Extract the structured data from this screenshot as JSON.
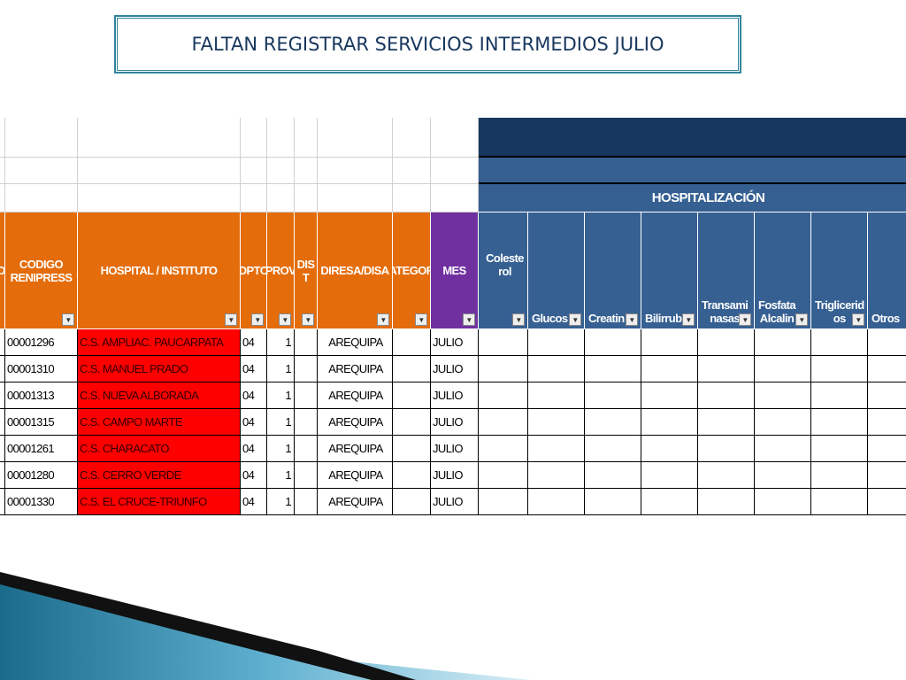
{
  "title": "FALTAN REGISTRAR SERVICIOS INTERMEDIOS JULIO",
  "sheet": {
    "group_header": "HOSPITALIZACIÓN",
    "headers": [
      "O.",
      "CODIGO\nRENIPRESS",
      "HOSPITAL / INSTITUTO",
      "DPTO",
      "PROV",
      "DIS\nT",
      "DIRESA/DISA",
      "ATEGOR",
      "MES",
      "Coleste\nrol",
      "Glucos",
      "Creatin",
      "Bilirrub",
      "Transami\nnasas",
      "Fosfata\nAlcalin",
      "Triglicerid\nos",
      "Otros"
    ],
    "rows": [
      {
        "code": "00001296",
        "hospital": "C.S. AMPLIAC. PAUCARPATA",
        "dpto": "04",
        "prov": "1",
        "diresa": "AREQUIPA",
        "mes": "JULIO"
      },
      {
        "code": "00001310",
        "hospital": "C.S. MANUEL PRADO",
        "dpto": "04",
        "prov": "1",
        "diresa": "AREQUIPA",
        "mes": "JULIO"
      },
      {
        "code": "00001313",
        "hospital": "C.S. NUEVA ALBORADA",
        "dpto": "04",
        "prov": "1",
        "diresa": "AREQUIPA",
        "mes": "JULIO"
      },
      {
        "code": "00001315",
        "hospital": "C.S. CAMPO MARTE",
        "dpto": "04",
        "prov": "1",
        "diresa": "AREQUIPA",
        "mes": "JULIO"
      },
      {
        "code": "00001261",
        "hospital": "C.S. CHARACATO",
        "dpto": "04",
        "prov": "1",
        "diresa": "AREQUIPA",
        "mes": "JULIO"
      },
      {
        "code": "00001280",
        "hospital": "C.S. CERRO VERDE",
        "dpto": "04",
        "prov": "1",
        "diresa": "AREQUIPA",
        "mes": "JULIO"
      },
      {
        "code": "00001330",
        "hospital": "C.S. EL CRUCE-TRIUNFO",
        "dpto": "04",
        "prov": "1",
        "diresa": "AREQUIPA",
        "mes": "JULIO"
      }
    ]
  }
}
